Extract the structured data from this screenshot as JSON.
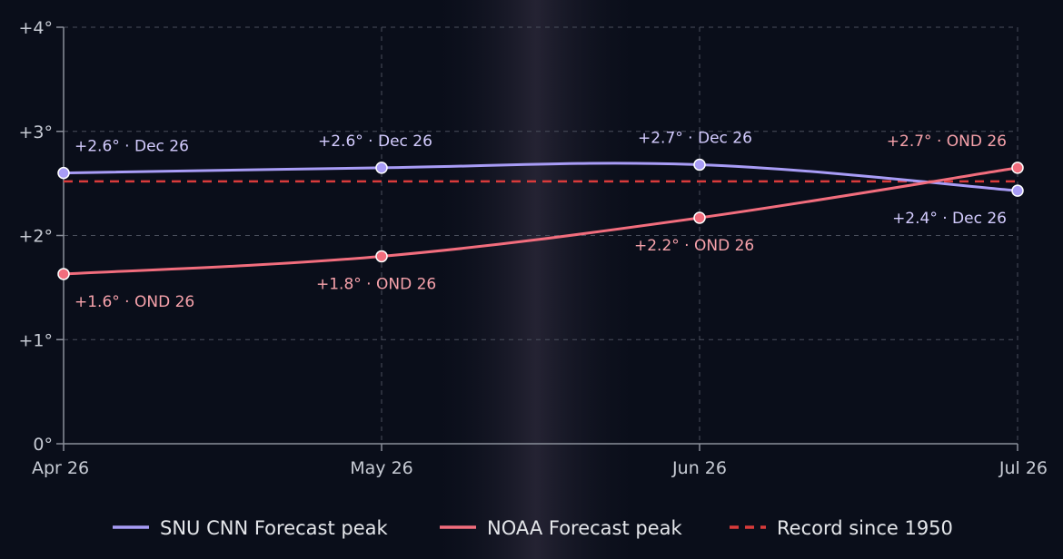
{
  "chart_data": {
    "type": "line",
    "x_categories": [
      "Apr 26",
      "May 26",
      "Jun 26",
      "Jul 26"
    ],
    "y_ticks": [
      "0°",
      "+1°",
      "+2°",
      "+3°",
      "+4°"
    ],
    "ylim": [
      0,
      4
    ],
    "grid": true,
    "legend_placement": "bottom",
    "series": [
      {
        "name": "SNU CNN Forecast peak",
        "color": "#a89cf6",
        "values": [
          2.6,
          2.65,
          2.68,
          2.43
        ],
        "labels": [
          "+2.6° · Dec 26",
          "+2.6° · Dec 26",
          "+2.7° · Dec 26",
          "+2.4° · Dec 26"
        ]
      },
      {
        "name": "NOAA Forecast peak",
        "color": "#f26d7d",
        "values": [
          1.63,
          1.8,
          2.17,
          2.65
        ],
        "labels": [
          "+1.6° · OND 26",
          "+1.8° · OND 26",
          "+2.2° · OND 26",
          "+2.7° · OND 26"
        ]
      }
    ],
    "reference_line": {
      "name": "Record since 1950",
      "value": 2.52,
      "color": "#d93b3b",
      "style": "dashed"
    }
  }
}
